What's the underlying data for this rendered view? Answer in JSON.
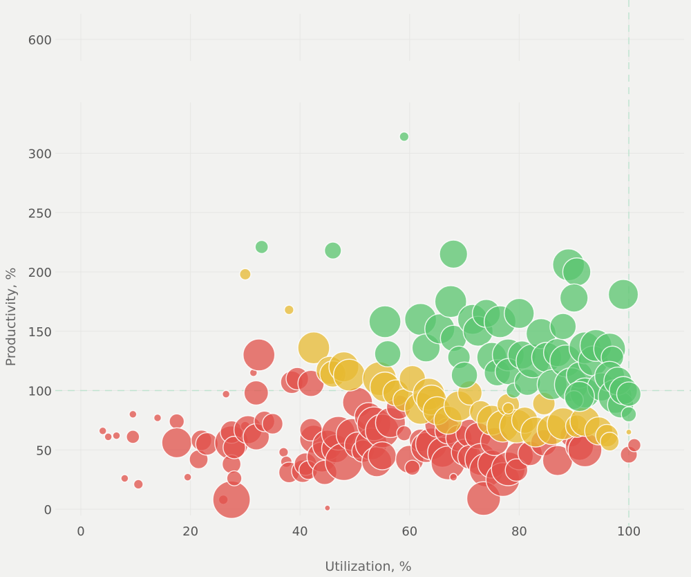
{
  "chart_data": {
    "type": "scatter",
    "subtype": "bubble",
    "title": "",
    "xlabel": "Utilization, %",
    "ylabel": "Productivity, %",
    "xlim": [
      0,
      110
    ],
    "x_ticks": [
      "0",
      "20",
      "40",
      "60",
      "80",
      "100"
    ],
    "y_ticks": [
      "0",
      "50",
      "100",
      "150",
      "200",
      "250",
      "300",
      "600"
    ],
    "y_axis_break": "between 300 and 600",
    "reference_lines": {
      "x": 100,
      "y": 100
    },
    "grid": true,
    "colors": {
      "red": "#e0504a",
      "yellow": "#e7b932",
      "green": "#58c46d"
    },
    "series": [
      {
        "color_key": "red",
        "points": [
          [
            4,
            66,
            4
          ],
          [
            5,
            61,
            4
          ],
          [
            6.5,
            62,
            4
          ],
          [
            9.5,
            80,
            4
          ],
          [
            9.5,
            61,
            7
          ],
          [
            8,
            26,
            4
          ],
          [
            10.5,
            21,
            5
          ],
          [
            14,
            77,
            4
          ],
          [
            17.5,
            74,
            8
          ],
          [
            17.5,
            56,
            16
          ],
          [
            19.5,
            27,
            4
          ],
          [
            21.5,
            42,
            10
          ],
          [
            22,
            58,
            11
          ],
          [
            23,
            55,
            12
          ],
          [
            26,
            8,
            5
          ],
          [
            26.5,
            97,
            4
          ],
          [
            27.5,
            56,
            18
          ],
          [
            27.5,
            65,
            12
          ],
          [
            27.5,
            38,
            10
          ],
          [
            27.5,
            8,
            20
          ],
          [
            28,
            52,
            12
          ],
          [
            28,
            26,
            8
          ],
          [
            30,
            70,
            5
          ],
          [
            30.5,
            67,
            15
          ],
          [
            31.5,
            115,
            4
          ],
          [
            32,
            98,
            13
          ],
          [
            32,
            61,
            14
          ],
          [
            32.5,
            130,
            17
          ],
          [
            33.5,
            74,
            11
          ],
          [
            35,
            72,
            11
          ],
          [
            37,
            48,
            5
          ],
          [
            37.5,
            40,
            6
          ],
          [
            38,
            31,
            11
          ],
          [
            38.5,
            107,
            12
          ],
          [
            39.5,
            110,
            12
          ],
          [
            40.5,
            32,
            12
          ],
          [
            41,
            38,
            12
          ],
          [
            41.5,
            33,
            10
          ],
          [
            42,
            106,
            14
          ],
          [
            42.5,
            59,
            15
          ],
          [
            42,
            67,
            12
          ],
          [
            44,
            44,
            16
          ],
          [
            44.5,
            31,
            13
          ],
          [
            45,
            54,
            16
          ],
          [
            45,
            1,
            3
          ],
          [
            46.5,
            51,
            15
          ],
          [
            47,
            64,
            18
          ],
          [
            48,
            40,
            20
          ],
          [
            49.5,
            63,
            17
          ],
          [
            50.5,
            90,
            16
          ],
          [
            50.5,
            54,
            14
          ],
          [
            51.5,
            49,
            12
          ],
          [
            52.5,
            78,
            15
          ],
          [
            53,
            55,
            17
          ],
          [
            53.5,
            72,
            18
          ],
          [
            54,
            40,
            16
          ],
          [
            55,
            66,
            18
          ],
          [
            55,
            45,
            15
          ],
          [
            56.5,
            73,
            16
          ],
          [
            58,
            86,
            13
          ],
          [
            59,
            64,
            8
          ],
          [
            60,
            42,
            15
          ],
          [
            60.5,
            35,
            8
          ],
          [
            62,
            58,
            12
          ],
          [
            63,
            52,
            16
          ],
          [
            64,
            55,
            17
          ],
          [
            65,
            71,
            13
          ],
          [
            66,
            48,
            16
          ],
          [
            67,
            66,
            14
          ],
          [
            67,
            39,
            18
          ],
          [
            68,
            27,
            4
          ],
          [
            69,
            60,
            14
          ],
          [
            70,
            48,
            14
          ],
          [
            71,
            64,
            15
          ],
          [
            71,
            44,
            13
          ],
          [
            72.5,
            62,
            14
          ],
          [
            73,
            42,
            17
          ],
          [
            74,
            33,
            18
          ],
          [
            73.5,
            9,
            18
          ],
          [
            75,
            38,
            15
          ],
          [
            75.5,
            57,
            15
          ],
          [
            77,
            25,
            18
          ],
          [
            78,
            34,
            18
          ],
          [
            80,
            45,
            15
          ],
          [
            79.5,
            33,
            12
          ],
          [
            82,
            47,
            13
          ],
          [
            84.5,
            56,
            14
          ],
          [
            87,
            41,
            16
          ],
          [
            89.5,
            62,
            12
          ],
          [
            91,
            53,
            15
          ],
          [
            92,
            50,
            18
          ],
          [
            100,
            46,
            9
          ],
          [
            101,
            54,
            7
          ]
        ]
      },
      {
        "color_key": "yellow",
        "points": [
          [
            30,
            198,
            6
          ],
          [
            38,
            168,
            5
          ],
          [
            42.5,
            136,
            17
          ],
          [
            45.5,
            117,
            15
          ],
          [
            46,
            114,
            14
          ],
          [
            48,
            120,
            16
          ],
          [
            49,
            113,
            17
          ],
          [
            54.5,
            110,
            18
          ],
          [
            55.5,
            103,
            16
          ],
          [
            57.5,
            98,
            14
          ],
          [
            59,
            92,
            12
          ],
          [
            60.5,
            110,
            14
          ],
          [
            62,
            85,
            17
          ],
          [
            63.5,
            97,
            17
          ],
          [
            64,
            92,
            16
          ],
          [
            65,
            83,
            15
          ],
          [
            67,
            75,
            15
          ],
          [
            69,
            87,
            16
          ],
          [
            71,
            98,
            13
          ],
          [
            73,
            82,
            12
          ],
          [
            75,
            75,
            16
          ],
          [
            77,
            70,
            17
          ],
          [
            78,
            88,
            12
          ],
          [
            79.5,
            70,
            18
          ],
          [
            81,
            75,
            14
          ],
          [
            83,
            65,
            16
          ],
          [
            84.5,
            89,
            12
          ],
          [
            86,
            67,
            16
          ],
          [
            88,
            72,
            17
          ],
          [
            90.5,
            70,
            12
          ],
          [
            92,
            74,
            16
          ],
          [
            94.5,
            66,
            15
          ],
          [
            96,
            62,
            12
          ],
          [
            96.5,
            57,
            10
          ],
          [
            100,
            65,
            3
          ],
          [
            78,
            85,
            6
          ]
        ]
      },
      {
        "color_key": "green",
        "points": [
          [
            33,
            221,
            7
          ],
          [
            46,
            218,
            9
          ],
          [
            59,
            314,
            5
          ],
          [
            68,
            215,
            15
          ],
          [
            55.5,
            158,
            17
          ],
          [
            56,
            131,
            14
          ],
          [
            62,
            160,
            17
          ],
          [
            63,
            136,
            15
          ],
          [
            65.5,
            152,
            16
          ],
          [
            67.5,
            175,
            17
          ],
          [
            68,
            144,
            14
          ],
          [
            69,
            128,
            12
          ],
          [
            70,
            113,
            14
          ],
          [
            71.5,
            160,
            16
          ],
          [
            72.5,
            150,
            16
          ],
          [
            74,
            165,
            15
          ],
          [
            75,
            128,
            16
          ],
          [
            76,
            115,
            14
          ],
          [
            76.5,
            158,
            17
          ],
          [
            78,
            130,
            17
          ],
          [
            78,
            116,
            14
          ],
          [
            79,
            100,
            8
          ],
          [
            80,
            165,
            16
          ],
          [
            80.5,
            130,
            15
          ],
          [
            81.5,
            107,
            14
          ],
          [
            82.5,
            125,
            18
          ],
          [
            84,
            148,
            16
          ],
          [
            85,
            128,
            16
          ],
          [
            86,
            105,
            16
          ],
          [
            87,
            132,
            15
          ],
          [
            88,
            154,
            14
          ],
          [
            88.5,
            125,
            17
          ],
          [
            89,
            206,
            17
          ],
          [
            90.5,
            200,
            15
          ],
          [
            89.5,
            105,
            18
          ],
          [
            90,
            178,
            15
          ],
          [
            91,
            113,
            14
          ],
          [
            92,
            136,
            17
          ],
          [
            92,
            98,
            16
          ],
          [
            93.5,
            125,
            16
          ],
          [
            94,
            138,
            17
          ],
          [
            95,
            103,
            15
          ],
          [
            96.5,
            135,
            17
          ],
          [
            97,
            128,
            12
          ],
          [
            96.5,
            112,
            16
          ],
          [
            97.5,
            95,
            18
          ],
          [
            98.5,
            88,
            14
          ],
          [
            98,
            108,
            15
          ],
          [
            99,
            181,
            16
          ],
          [
            100,
            80,
            8
          ],
          [
            99,
            100,
            15
          ],
          [
            100,
            97,
            13
          ],
          [
            90,
            92,
            10
          ],
          [
            91,
            95,
            16
          ]
        ]
      }
    ]
  }
}
